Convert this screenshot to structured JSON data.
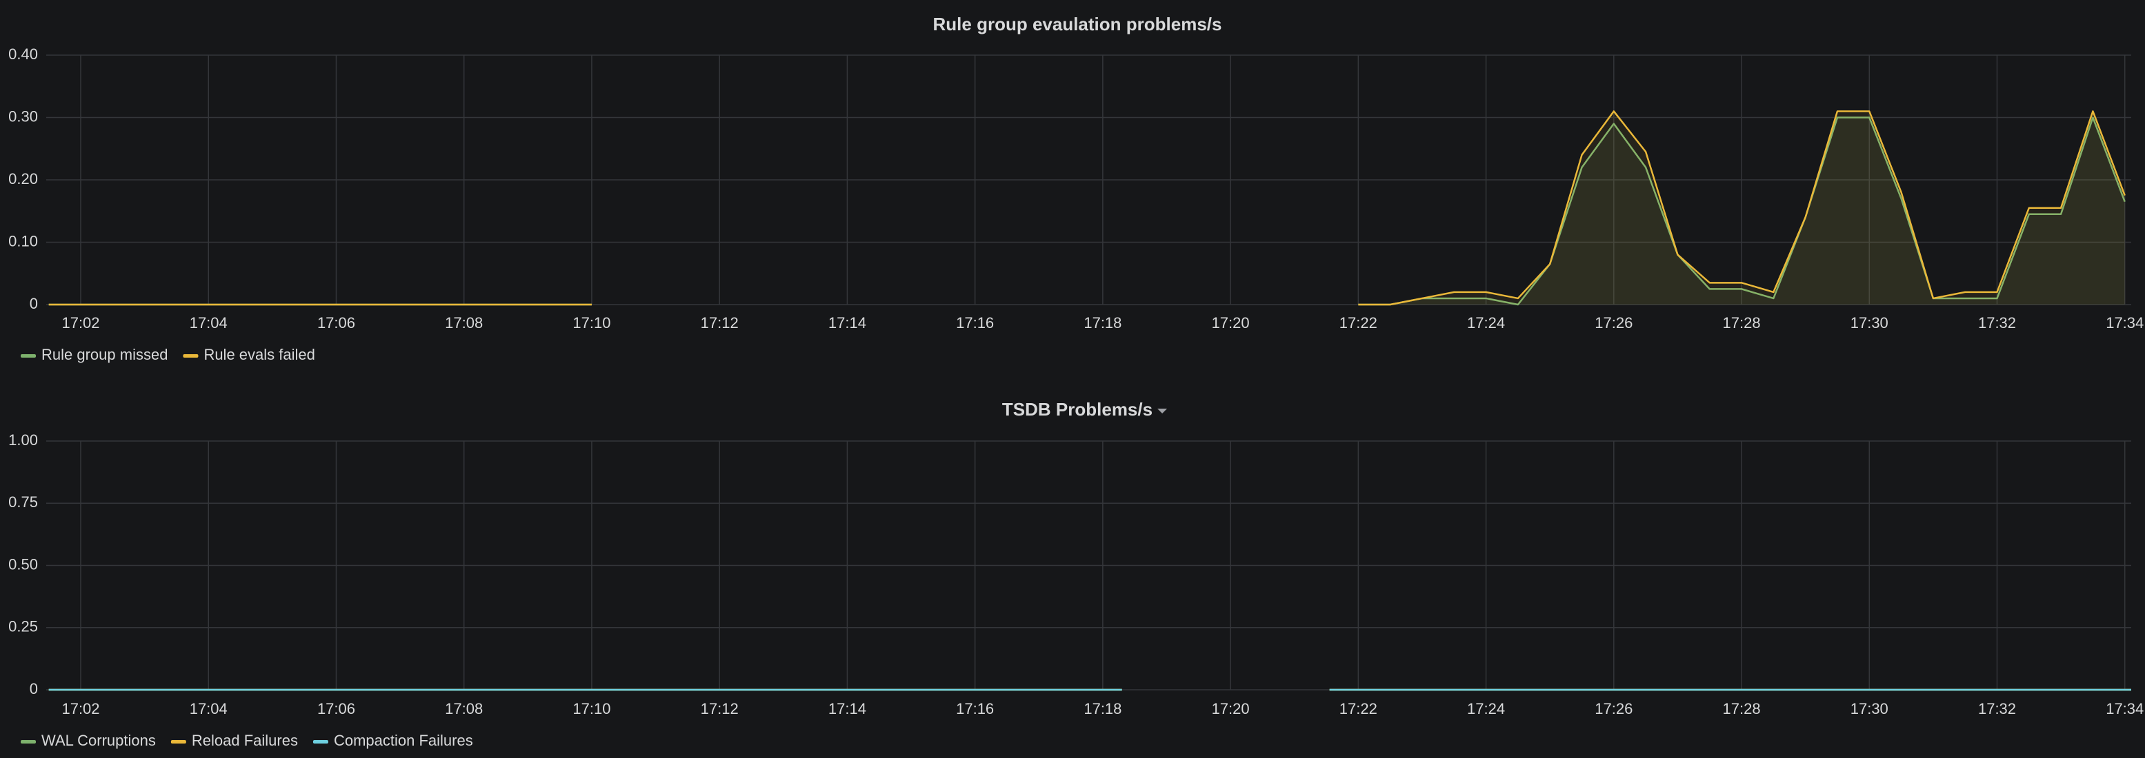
{
  "chart_data": [
    {
      "type": "line",
      "title": "Rule group evaulation problems/s",
      "fill": true,
      "grid": true,
      "legend": "bottom-left",
      "x": [
        1021.5,
        1030,
        1036,
        1042,
        1042.5,
        1043,
        1043.5,
        1044,
        1044.5,
        1045,
        1045.5,
        1046,
        1046.5,
        1047,
        1047.5,
        1048,
        1048.5,
        1049,
        1049.5,
        1050,
        1050.5,
        1051,
        1051.5,
        1052,
        1052.5,
        1053,
        1053.5,
        1054
      ],
      "xlim": [
        1021.46,
        1054.1
      ],
      "xticks": [
        {
          "value": 1022,
          "label": "17:02"
        },
        {
          "value": 1024,
          "label": "17:04"
        },
        {
          "value": 1026,
          "label": "17:06"
        },
        {
          "value": 1028,
          "label": "17:08"
        },
        {
          "value": 1030,
          "label": "17:10"
        },
        {
          "value": 1032,
          "label": "17:12"
        },
        {
          "value": 1034,
          "label": "17:14"
        },
        {
          "value": 1036,
          "label": "17:16"
        },
        {
          "value": 1038,
          "label": "17:18"
        },
        {
          "value": 1040,
          "label": "17:20"
        },
        {
          "value": 1042,
          "label": "17:22"
        },
        {
          "value": 1044,
          "label": "17:24"
        },
        {
          "value": 1046,
          "label": "17:26"
        },
        {
          "value": 1048,
          "label": "17:28"
        },
        {
          "value": 1050,
          "label": "17:30"
        },
        {
          "value": 1052,
          "label": "17:32"
        },
        {
          "value": 1054,
          "label": "17:34"
        }
      ],
      "ylim": [
        0,
        0.4
      ],
      "yticks": [
        0,
        {
          "value": 0.1,
          "label": "0.10"
        },
        {
          "value": 0.2,
          "label": "0.20"
        },
        {
          "value": 0.3,
          "label": "0.30"
        },
        {
          "value": 0.4,
          "label": "0.40"
        }
      ],
      "series": [
        {
          "name": "Rule group missed",
          "color": "#7eb26d",
          "values": [
            0,
            0,
            null,
            0,
            0,
            0.01,
            0.01,
            0.01,
            0,
            0.065,
            0.22,
            0.29,
            0.22,
            0.08,
            0.025,
            0.025,
            0.01,
            0.14,
            0.3,
            0.3,
            0.17,
            0.01,
            0.01,
            0.01,
            0.145,
            0.145,
            0.3,
            0.165
          ]
        },
        {
          "name": "Rule evals failed",
          "color": "#eab839",
          "values": [
            0,
            0,
            null,
            0,
            0,
            0.01,
            0.02,
            0.02,
            0.01,
            0.065,
            0.24,
            0.31,
            0.245,
            0.08,
            0.035,
            0.035,
            0.02,
            0.14,
            0.31,
            0.31,
            0.18,
            0.01,
            0.02,
            0.02,
            0.155,
            0.155,
            0.31,
            0.175
          ]
        }
      ]
    },
    {
      "type": "line",
      "title": "TSDB Problems/s",
      "fill": true,
      "grid": true,
      "legend": "bottom-left",
      "x": [
        1021.5,
        1038.3,
        1040,
        1041.55,
        1054.1
      ],
      "xlim": [
        1021.46,
        1054.1
      ],
      "xticks": [
        {
          "value": 1022,
          "label": "17:02"
        },
        {
          "value": 1024,
          "label": "17:04"
        },
        {
          "value": 1026,
          "label": "17:06"
        },
        {
          "value": 1028,
          "label": "17:08"
        },
        {
          "value": 1030,
          "label": "17:10"
        },
        {
          "value": 1032,
          "label": "17:12"
        },
        {
          "value": 1034,
          "label": "17:14"
        },
        {
          "value": 1036,
          "label": "17:16"
        },
        {
          "value": 1038,
          "label": "17:18"
        },
        {
          "value": 1040,
          "label": "17:20"
        },
        {
          "value": 1042,
          "label": "17:22"
        },
        {
          "value": 1044,
          "label": "17:24"
        },
        {
          "value": 1046,
          "label": "17:26"
        },
        {
          "value": 1048,
          "label": "17:28"
        },
        {
          "value": 1050,
          "label": "17:30"
        },
        {
          "value": 1052,
          "label": "17:32"
        },
        {
          "value": 1054,
          "label": "17:34"
        }
      ],
      "ylim": [
        0,
        1
      ],
      "yticks": [
        0,
        0.25,
        {
          "value": 0.5,
          "label": "0.50"
        },
        0.75,
        {
          "value": 1,
          "label": "1.00"
        }
      ],
      "series": [
        {
          "name": "WAL Corruptions",
          "color": "#7eb26d",
          "values": [
            0,
            0,
            null,
            0,
            0
          ]
        },
        {
          "name": "Reload Failures",
          "color": "#eab839",
          "values": [
            0,
            0,
            null,
            0,
            0
          ]
        },
        {
          "name": "Compaction Failures",
          "color": "#6ed0e0",
          "values": [
            0,
            0,
            null,
            0,
            0
          ]
        }
      ]
    }
  ]
}
